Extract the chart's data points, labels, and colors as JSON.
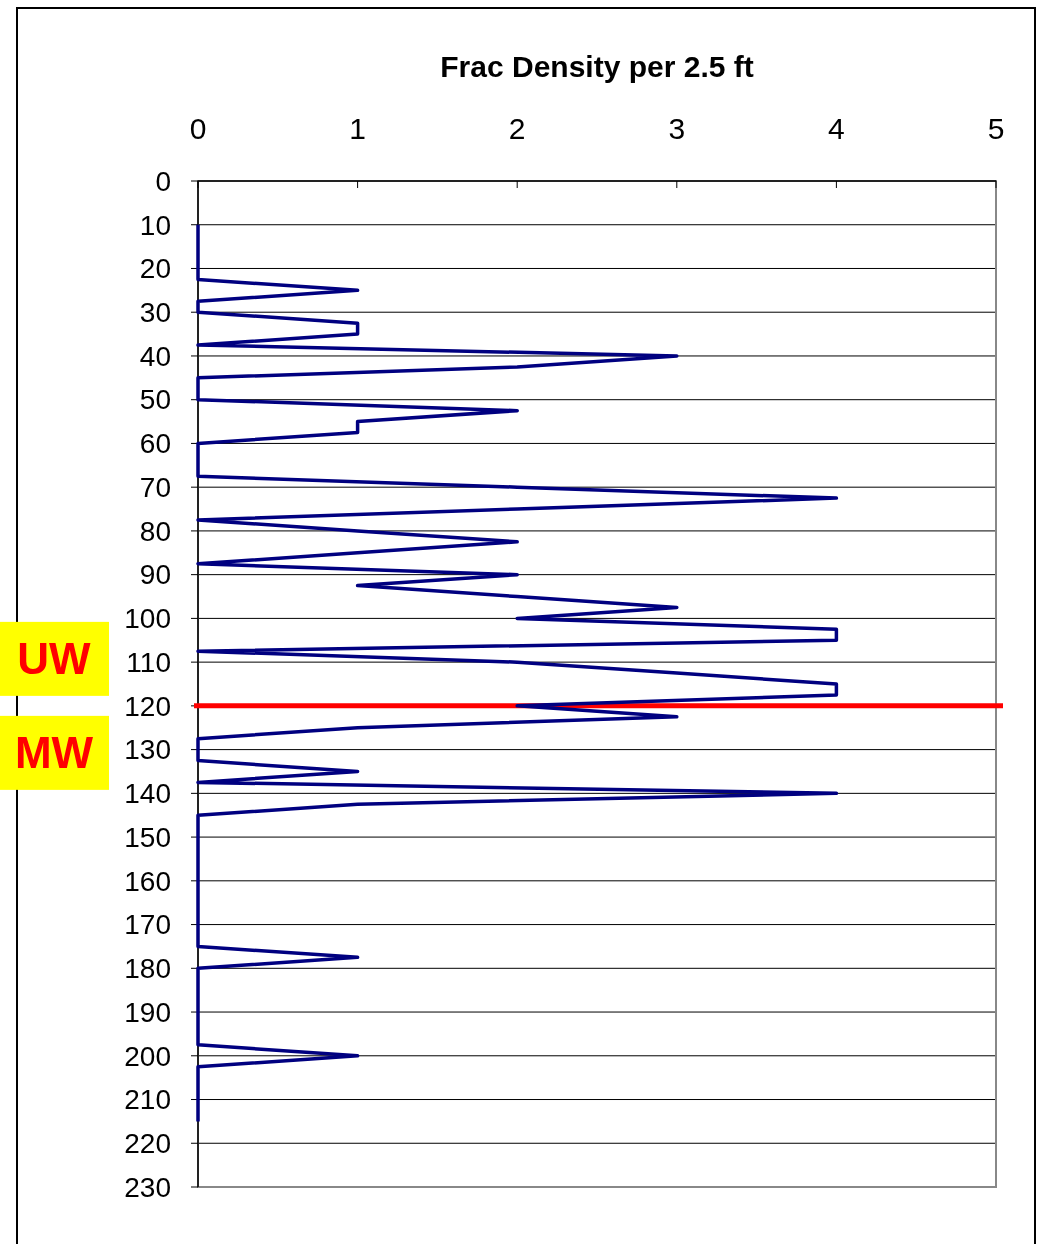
{
  "chart_data": {
    "type": "line",
    "xlabel": "Frac Density per 2.5 ft",
    "x": [
      0,
      0,
      0,
      0,
      0,
      0,
      1,
      0,
      0,
      1,
      1,
      0,
      3,
      2,
      0,
      0,
      0,
      2,
      1,
      1,
      0,
      0,
      0,
      0,
      2,
      4,
      2,
      0,
      1,
      2,
      1,
      0,
      2,
      1,
      2,
      3,
      2,
      4,
      4,
      0,
      2,
      3,
      4,
      4,
      2,
      3,
      1,
      0,
      0,
      0,
      1,
      0,
      4,
      1,
      0,
      0,
      0,
      0,
      0,
      0,
      0,
      0,
      0,
      0,
      0,
      0,
      0,
      1,
      0,
      0,
      0,
      0,
      0,
      0,
      0,
      0,
      1,
      0,
      0,
      0,
      0,
      0,
      0
    ],
    "series": [
      {
        "color": "#000080",
        "values": [
          10,
          12.5,
          15,
          17.5,
          20,
          22.5,
          25,
          27.5,
          30,
          32.5,
          35,
          37.5,
          40,
          42.5,
          45,
          47.5,
          50,
          52.5,
          55,
          57.5,
          60,
          62.5,
          65,
          67.5,
          70,
          72.5,
          75,
          77.5,
          80,
          82.5,
          85,
          87.5,
          90,
          92.5,
          95,
          97.5,
          100,
          102.5,
          105,
          107.5,
          110,
          112.5,
          115,
          117.5,
          120,
          122.5,
          125,
          127.5,
          130,
          132.5,
          135,
          137.5,
          140,
          142.5,
          145,
          147.5,
          150,
          152.5,
          155,
          157.5,
          160,
          162.5,
          165,
          167.5,
          170,
          172.5,
          175,
          177.5,
          180,
          182.5,
          185,
          187.5,
          190,
          192.5,
          195,
          197.5,
          200,
          202.5,
          205,
          207.5,
          210,
          212.5,
          215
        ]
      }
    ],
    "xlim": [
      0,
      5
    ],
    "xticks": [
      0,
      1,
      2,
      3,
      4,
      5
    ],
    "ylim": [
      230,
      0
    ],
    "yticks": [
      0,
      10,
      20,
      30,
      40,
      50,
      60,
      70,
      80,
      90,
      100,
      110,
      120,
      130,
      140,
      150,
      160,
      170,
      180,
      190,
      200,
      210,
      220,
      230
    ],
    "grid": "y",
    "marker": "none",
    "line_style": "solid",
    "ref_lines": [
      {
        "axis": "y",
        "value": 120,
        "color": "#ff0000",
        "line_style": "solid"
      }
    ],
    "annotations": [
      "UW",
      "MW"
    ]
  }
}
